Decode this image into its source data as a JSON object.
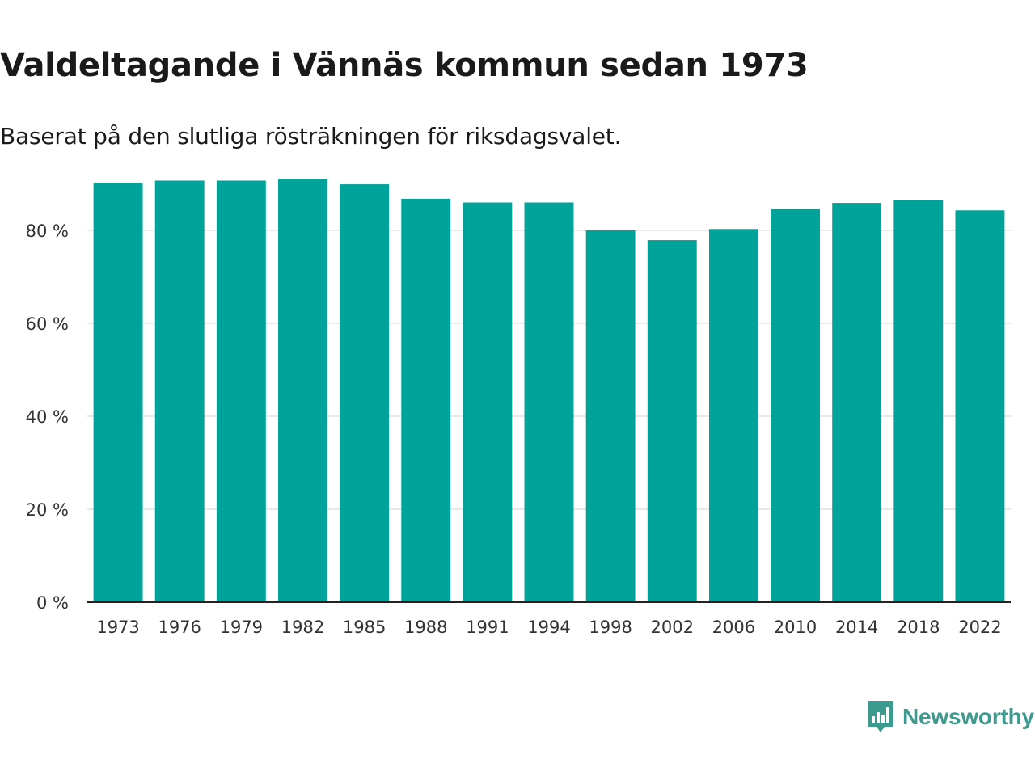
{
  "header": {
    "title": "Valdeltagande i Vännäs kommun sedan 1973",
    "subtitle": "Baserat på den slutliga rösträkningen för riksdagsvalet."
  },
  "brand": {
    "name": "Newsworthy",
    "logo_icon": "bar-chart-speech-bubble-icon",
    "color": "#3d9a8e"
  },
  "chart_data": {
    "type": "bar",
    "title": "Valdeltagande i Vännäs kommun sedan 1973",
    "subtitle": "Baserat på den slutliga rösträkningen för riksdagsvalet.",
    "xlabel": "",
    "ylabel": "",
    "categories": [
      "1973",
      "1976",
      "1979",
      "1982",
      "1985",
      "1988",
      "1991",
      "1994",
      "1998",
      "2002",
      "2006",
      "2010",
      "2014",
      "2018",
      "2022"
    ],
    "values": [
      90.2,
      90.7,
      90.7,
      91.0,
      89.9,
      86.8,
      86.0,
      86.0,
      80.0,
      77.9,
      80.3,
      84.6,
      85.9,
      86.6,
      84.3
    ],
    "ylim": [
      0,
      100
    ],
    "yticks": [
      0,
      20,
      40,
      60,
      80
    ],
    "ytick_labels": [
      "0 %",
      "20 %",
      "40 %",
      "60 %",
      "80 %"
    ],
    "bar_color": "#00a39a",
    "grid": true,
    "legend": "none"
  }
}
